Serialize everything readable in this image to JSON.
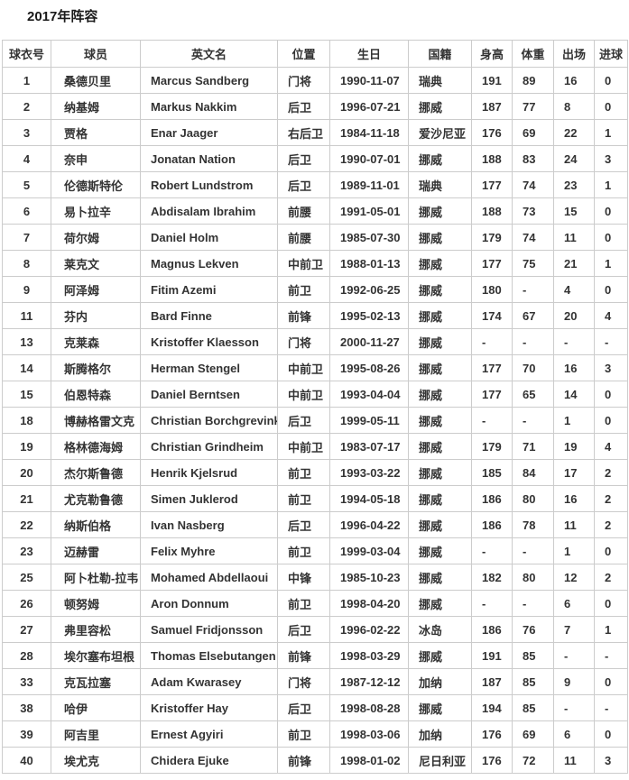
{
  "page": {
    "title": "2017年阵容"
  },
  "table": {
    "headers": [
      "球衣号",
      "球员",
      "英文名",
      "位置",
      "生日",
      "国籍",
      "身高",
      "体重",
      "出场",
      "进球"
    ],
    "column_keys": [
      "jersey-number",
      "player-name-cn",
      "player-name-en",
      "position",
      "birthday",
      "nationality",
      "height",
      "weight",
      "appearances",
      "goals"
    ],
    "border_color": "#cccccc",
    "text_color": "#333333",
    "rows": [
      [
        "1",
        "桑德贝里",
        "Marcus Sandberg",
        "门将",
        "1990-11-07",
        "瑞典",
        "191",
        "89",
        "16",
        "0"
      ],
      [
        "2",
        "纳基姆",
        "Markus Nakkim",
        "后卫",
        "1996-07-21",
        "挪威",
        "187",
        "77",
        "8",
        "0"
      ],
      [
        "3",
        "贾格",
        "Enar Jaager",
        "右后卫",
        "1984-11-18",
        "爱沙尼亚",
        "176",
        "69",
        "22",
        "1"
      ],
      [
        "4",
        "奈申",
        "Jonatan Nation",
        "后卫",
        "1990-07-01",
        "挪威",
        "188",
        "83",
        "24",
        "3"
      ],
      [
        "5",
        "伦德斯特伦",
        "Robert Lundstrom",
        "后卫",
        "1989-11-01",
        "瑞典",
        "177",
        "74",
        "23",
        "1"
      ],
      [
        "6",
        "易卜拉辛",
        "Abdisalam Ibrahim",
        "前腰",
        "1991-05-01",
        "挪威",
        "188",
        "73",
        "15",
        "0"
      ],
      [
        "7",
        "荷尔姆",
        "Daniel Holm",
        "前腰",
        "1985-07-30",
        "挪威",
        "179",
        "74",
        "11",
        "0"
      ],
      [
        "8",
        "莱克文",
        "Magnus Lekven",
        "中前卫",
        "1988-01-13",
        "挪威",
        "177",
        "75",
        "21",
        "1"
      ],
      [
        "9",
        "阿泽姆",
        "Fitim Azemi",
        "前卫",
        "1992-06-25",
        "挪威",
        "180",
        "-",
        "4",
        "0"
      ],
      [
        "11",
        "芬内",
        "Bard Finne",
        "前锋",
        "1995-02-13",
        "挪威",
        "174",
        "67",
        "20",
        "4"
      ],
      [
        "13",
        "克莱森",
        "Kristoffer Klaesson",
        "门将",
        "2000-11-27",
        "挪威",
        "-",
        "-",
        "-",
        "-"
      ],
      [
        "14",
        "斯腾格尔",
        "Herman Stengel",
        "中前卫",
        "1995-08-26",
        "挪威",
        "177",
        "70",
        "16",
        "3"
      ],
      [
        "15",
        "伯恩特森",
        "Daniel Berntsen",
        "中前卫",
        "1993-04-04",
        "挪威",
        "177",
        "65",
        "14",
        "0"
      ],
      [
        "18",
        "博赫格雷文克",
        "Christian Borchgrevink",
        "后卫",
        "1999-05-11",
        "挪威",
        "-",
        "-",
        "1",
        "0"
      ],
      [
        "19",
        "格林德海姆",
        "Christian Grindheim",
        "中前卫",
        "1983-07-17",
        "挪威",
        "179",
        "71",
        "19",
        "4"
      ],
      [
        "20",
        "杰尔斯鲁德",
        "Henrik Kjelsrud",
        "前卫",
        "1993-03-22",
        "挪威",
        "185",
        "84",
        "17",
        "2"
      ],
      [
        "21",
        "尤克勒鲁德",
        "Simen Juklerod",
        "前卫",
        "1994-05-18",
        "挪威",
        "186",
        "80",
        "16",
        "2"
      ],
      [
        "22",
        "纳斯伯格",
        "Ivan Nasberg",
        "后卫",
        "1996-04-22",
        "挪威",
        "186",
        "78",
        "11",
        "2"
      ],
      [
        "23",
        "迈赫雷",
        "Felix Myhre",
        "前卫",
        "1999-03-04",
        "挪威",
        "-",
        "-",
        "1",
        "0"
      ],
      [
        "25",
        "阿卜杜勒-拉韦",
        "Mohamed Abdellaoui",
        "中锋",
        "1985-10-23",
        "挪威",
        "182",
        "80",
        "12",
        "2"
      ],
      [
        "26",
        "顿努姆",
        "Aron Donnum",
        "前卫",
        "1998-04-20",
        "挪威",
        "-",
        "-",
        "6",
        "0"
      ],
      [
        "27",
        "弗里容松",
        "Samuel Fridjonsson",
        "后卫",
        "1996-02-22",
        "冰岛",
        "186",
        "76",
        "7",
        "1"
      ],
      [
        "28",
        "埃尔塞布坦根",
        "Thomas Elsebutangen",
        "前锋",
        "1998-03-29",
        "挪威",
        "191",
        "85",
        "-",
        "-"
      ],
      [
        "33",
        "克瓦拉塞",
        "Adam Kwarasey",
        "门将",
        "1987-12-12",
        "加纳",
        "187",
        "85",
        "9",
        "0"
      ],
      [
        "38",
        "哈伊",
        "Kristoffer Hay",
        "后卫",
        "1998-08-28",
        "挪威",
        "194",
        "85",
        "-",
        "-"
      ],
      [
        "39",
        "阿吉里",
        "Ernest Agyiri",
        "前卫",
        "1998-03-06",
        "加纳",
        "176",
        "69",
        "6",
        "0"
      ],
      [
        "40",
        "埃尤克",
        "Chidera Ejuke",
        "前锋",
        "1998-01-02",
        "尼日利亚",
        "176",
        "72",
        "11",
        "3"
      ]
    ]
  }
}
